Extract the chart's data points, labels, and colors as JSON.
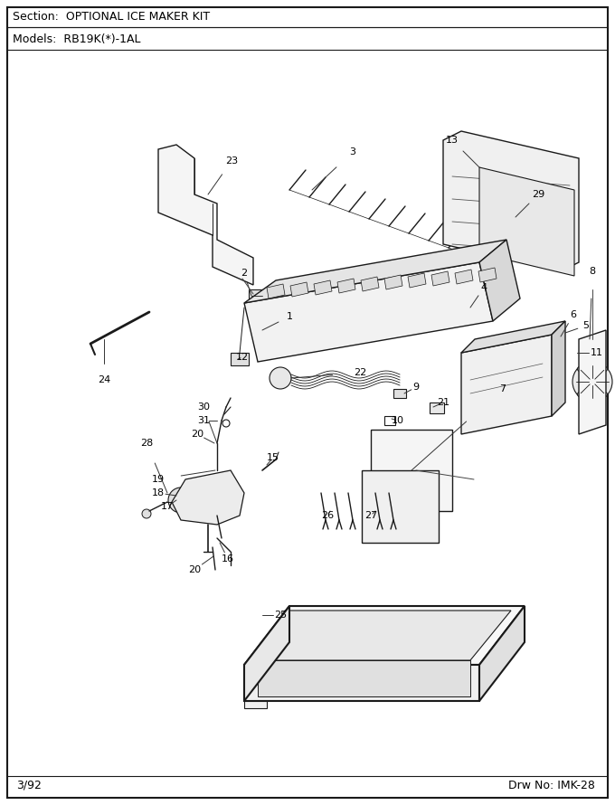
{
  "section_text": "Section:  OPTIONAL ICE MAKER KIT",
  "models_text": "Models:  RB19K(*)-1AL",
  "footer_left": "3/92",
  "footer_right": "Drw No: IMK-28",
  "bg_color": "#ffffff",
  "border_color": "#000000",
  "text_color": "#000000",
  "fig_width": 6.8,
  "fig_height": 8.9,
  "dpi": 100
}
